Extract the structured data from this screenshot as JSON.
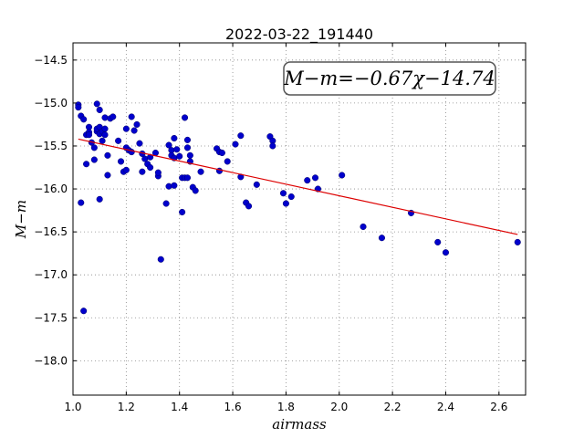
{
  "chart_data": {
    "type": "scatter",
    "title": "2022-03-22_191440",
    "xlabel": "airmass",
    "ylabel": "M−m",
    "annotation": "M−m=−0.67χ−14.74",
    "xlim": [
      1.0,
      2.7
    ],
    "ylim": [
      -18.4,
      -14.3
    ],
    "y_inverted": true,
    "grid": true,
    "x_ticks": [
      1.0,
      1.2,
      1.4,
      1.6,
      1.8,
      2.0,
      2.2,
      2.4,
      2.6
    ],
    "x_tick_labels": [
      "1.0",
      "1.2",
      "1.4",
      "1.6",
      "1.8",
      "2.0",
      "2.2",
      "2.4",
      "2.6"
    ],
    "y_ticks": [
      -14.5,
      -15.0,
      -15.5,
      -16.0,
      -16.5,
      -17.0,
      -17.5,
      -18.0
    ],
    "y_tick_labels": [
      "−14.5",
      "−15.0",
      "−15.5",
      "−16.0",
      "−16.5",
      "−17.0",
      "−17.5",
      "−18.0"
    ],
    "colors": {
      "points": "#0000cc",
      "fit": "#dd0000",
      "grid": "#888888"
    },
    "series": [
      {
        "kind": "points",
        "x": [
          1.02,
          1.02,
          1.03,
          1.03,
          1.04,
          1.04,
          1.05,
          1.05,
          1.06,
          1.06,
          1.06,
          1.07,
          1.08,
          1.08,
          1.09,
          1.09,
          1.09,
          1.1,
          1.1,
          1.1,
          1.1,
          1.11,
          1.11,
          1.12,
          1.12,
          1.12,
          1.13,
          1.13,
          1.14,
          1.15,
          1.17,
          1.18,
          1.19,
          1.2,
          1.2,
          1.2,
          1.21,
          1.22,
          1.22,
          1.23,
          1.24,
          1.25,
          1.26,
          1.26,
          1.27,
          1.28,
          1.29,
          1.29,
          1.31,
          1.32,
          1.32,
          1.33,
          1.35,
          1.36,
          1.36,
          1.37,
          1.37,
          1.38,
          1.38,
          1.38,
          1.39,
          1.4,
          1.41,
          1.41,
          1.42,
          1.42,
          1.43,
          1.43,
          1.43,
          1.44,
          1.44,
          1.45,
          1.46,
          1.48,
          1.54,
          1.55,
          1.55,
          1.56,
          1.58,
          1.61,
          1.63,
          1.63,
          1.65,
          1.66,
          1.69,
          1.74,
          1.75,
          1.75,
          1.79,
          1.8,
          1.82,
          1.88,
          1.91,
          1.92,
          2.01,
          2.09,
          2.16,
          2.27,
          2.37,
          2.4,
          2.67
        ],
        "y": [
          -15.02,
          -15.05,
          -15.15,
          -16.16,
          -17.42,
          -15.19,
          -15.71,
          -15.37,
          -15.28,
          -15.34,
          -15.37,
          -15.46,
          -15.66,
          -15.52,
          -15.01,
          -15.33,
          -15.3,
          -16.12,
          -15.08,
          -15.28,
          -15.36,
          -15.33,
          -15.44,
          -15.3,
          -15.37,
          -15.17,
          -15.61,
          -15.84,
          -15.18,
          -15.16,
          -15.44,
          -15.68,
          -15.8,
          -15.3,
          -15.52,
          -15.78,
          -15.55,
          -15.57,
          -15.16,
          -15.32,
          -15.25,
          -15.47,
          -15.8,
          -15.59,
          -15.65,
          -15.71,
          -15.63,
          -15.75,
          -15.58,
          -15.85,
          -15.81,
          -16.82,
          -16.17,
          -15.49,
          -15.97,
          -15.55,
          -15.61,
          -15.96,
          -15.41,
          -15.64,
          -15.54,
          -15.62,
          -16.27,
          -15.87,
          -15.17,
          -15.87,
          -15.43,
          -15.52,
          -15.87,
          -15.61,
          -15.68,
          -15.98,
          -16.02,
          -15.8,
          -15.53,
          -15.79,
          -15.57,
          -15.58,
          -15.68,
          -15.48,
          -15.86,
          -15.38,
          -16.16,
          -16.2,
          -15.95,
          -15.39,
          -15.44,
          -15.5,
          -16.05,
          -16.17,
          -16.09,
          -15.9,
          -15.87,
          -16.0,
          -15.84,
          -16.44,
          -16.57,
          -16.28,
          -16.62,
          -16.74,
          -16.62
        ]
      },
      {
        "kind": "fit_line",
        "x": [
          1.02,
          2.67
        ],
        "y": [
          -15.42,
          -16.53
        ]
      }
    ]
  }
}
